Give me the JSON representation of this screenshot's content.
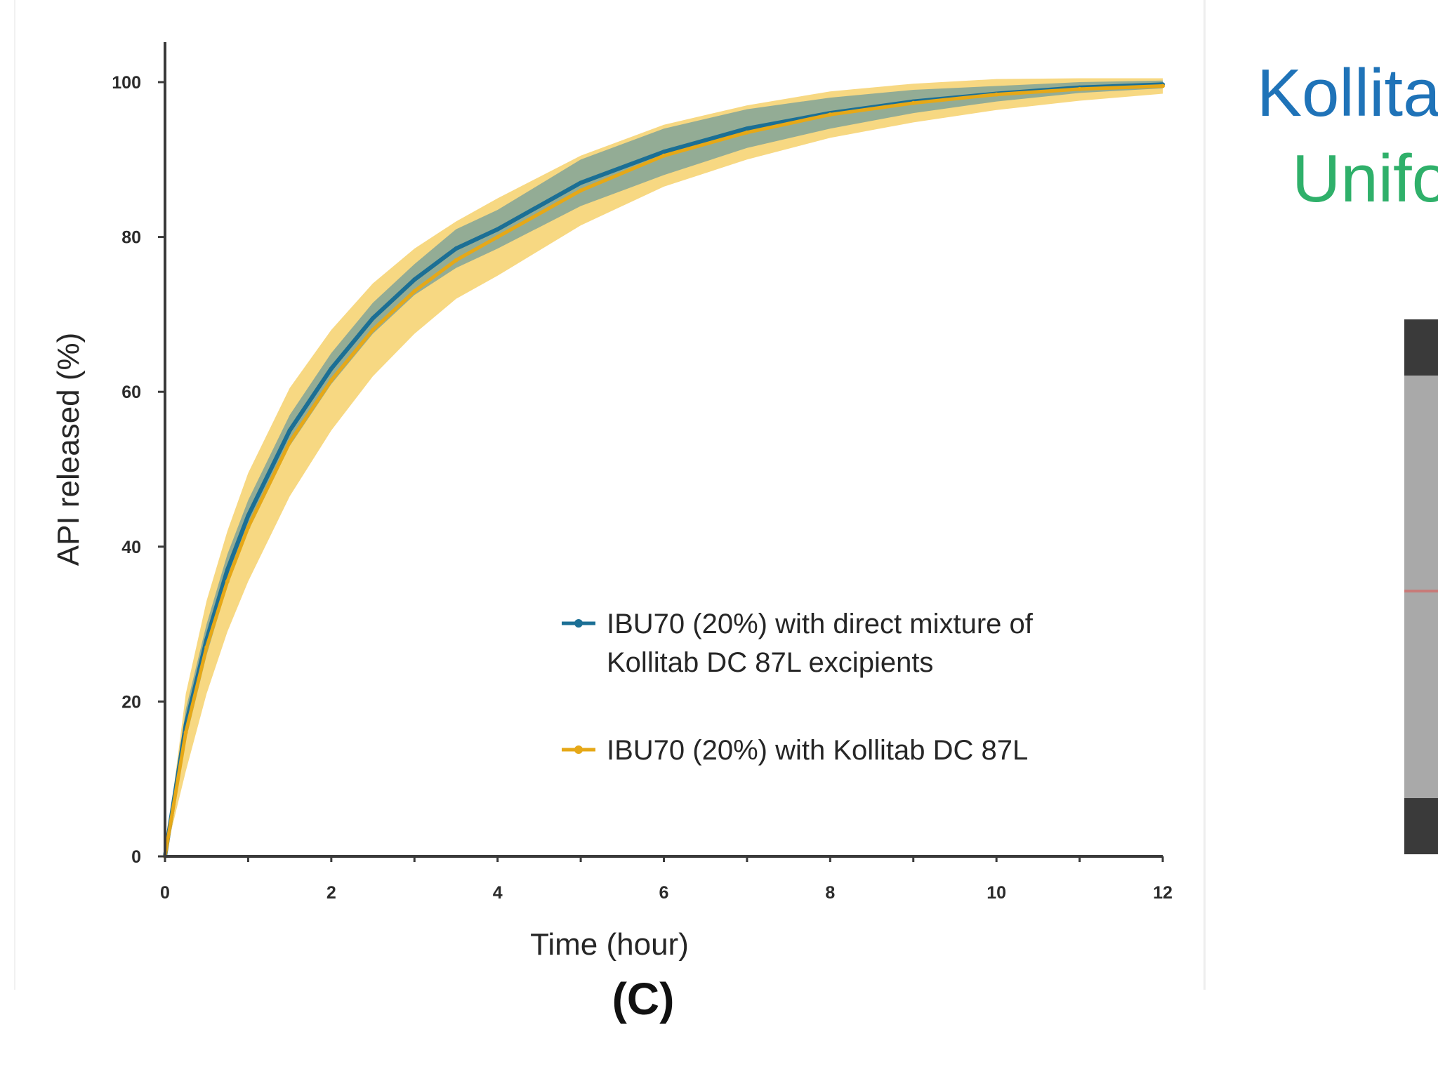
{
  "panel_label": "(C)",
  "side_panel": {
    "title_line1": "Kollita",
    "title_line2": "Unifo",
    "title_color_1": "#1f73b8",
    "title_color_2": "#2fb06a"
  },
  "chart_data": {
    "type": "line",
    "xlabel": "Time (hour)",
    "ylabel": "API released (%)",
    "xlim": [
      0,
      12
    ],
    "ylim": [
      0,
      100
    ],
    "x_ticks": [
      0,
      2,
      4,
      6,
      8,
      10,
      12
    ],
    "y_ticks": [
      0,
      20,
      40,
      60,
      80,
      100
    ],
    "grid": false,
    "legend_position": "lower-right",
    "x": [
      0,
      0.25,
      0.5,
      0.75,
      1,
      1.5,
      2,
      2.5,
      3,
      3.5,
      4,
      5,
      6,
      7,
      8,
      9,
      10,
      11,
      12
    ],
    "series": [
      {
        "name": "IBU70 (20%) with direct mixture of Kollitab DC 87L excipients",
        "legend_lines": [
          "IBU70 (20%) with direct mixture of",
          "Kollitab DC 87L excipients"
        ],
        "color": "#1b6f95",
        "band_color": "#2f7fa8",
        "values": [
          0,
          17,
          28,
          37,
          44,
          55,
          63,
          69.5,
          74.5,
          78.5,
          81,
          87,
          91,
          94,
          96,
          97.5,
          98.5,
          99.3,
          99.7
        ],
        "spread": [
          0,
          2,
          2,
          2,
          2,
          2,
          2,
          2,
          2,
          2.5,
          2.5,
          3,
          3,
          2.5,
          2,
          1.5,
          1,
          0.7,
          0.5
        ]
      },
      {
        "name": "IBU70 (20%) with Kollitab DC 87L",
        "legend_lines": [
          "IBU70 (20%) with Kollitab DC 87L"
        ],
        "color": "#e6a817",
        "band_color": "#f0b81c",
        "values": [
          0,
          16,
          27,
          35.5,
          42.5,
          53.5,
          61.5,
          68,
          73,
          77,
          80,
          86,
          90.5,
          93.5,
          95.8,
          97.3,
          98.4,
          99.1,
          99.5
        ],
        "spread": [
          0,
          5,
          6,
          6.5,
          7,
          7,
          6.5,
          6,
          5.5,
          5,
          5,
          4.5,
          4,
          3.5,
          3,
          2.5,
          2,
          1.5,
          1
        ]
      }
    ]
  }
}
